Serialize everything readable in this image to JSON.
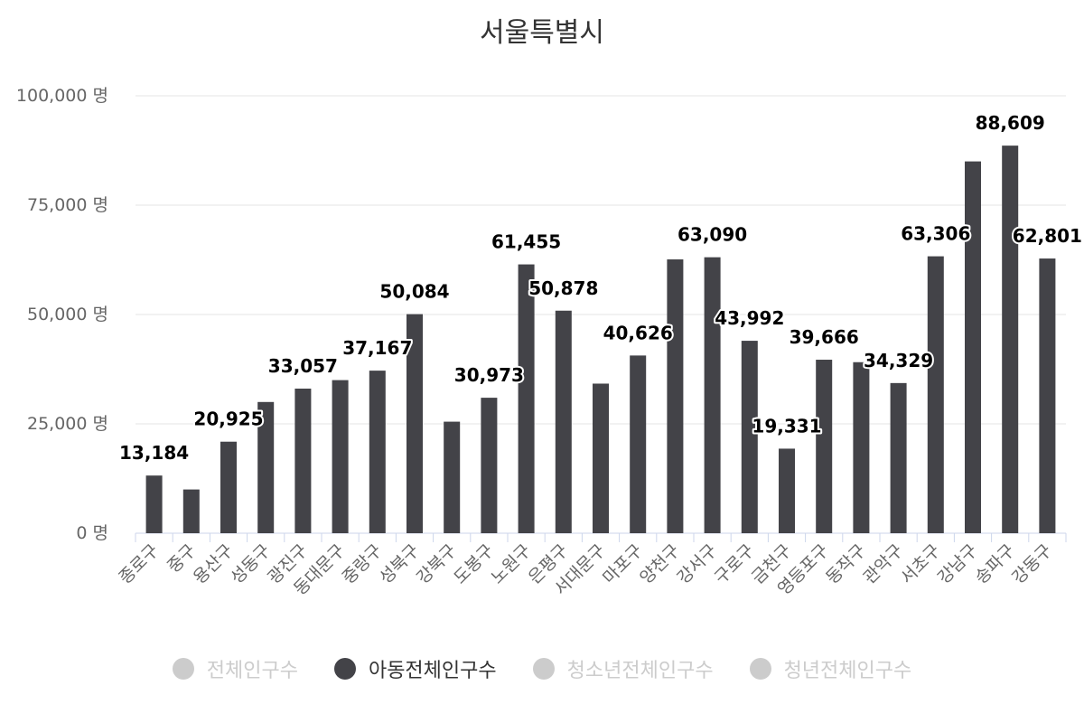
{
  "chart_data": {
    "type": "bar",
    "title": "서울특별시",
    "unit": "명",
    "ylim": [
      0,
      100000
    ],
    "yticks": [
      0,
      25000,
      50000,
      75000,
      100000
    ],
    "ytick_labels": [
      "0 명",
      "25,000 명",
      "50,000 명",
      "75,000 명",
      "100,000 명"
    ],
    "categories": [
      "종로구",
      "중구",
      "용산구",
      "성동구",
      "광진구",
      "동대문구",
      "중랑구",
      "성북구",
      "강북구",
      "도봉구",
      "노원구",
      "은평구",
      "서대문구",
      "마포구",
      "양천구",
      "강서구",
      "구로구",
      "금천구",
      "영등포구",
      "동작구",
      "관악구",
      "서초구",
      "강남구",
      "송파구",
      "강동구"
    ],
    "series": [
      {
        "name": "아동전체인구수",
        "color": "#434348",
        "values": [
          13184,
          10000,
          20925,
          30000,
          33057,
          35000,
          37167,
          50084,
          25500,
          30973,
          61455,
          50878,
          34200,
          40626,
          62600,
          63090,
          43992,
          19331,
          39666,
          39100,
          34329,
          63306,
          85000,
          88609,
          62801
        ]
      }
    ],
    "data_labels": [
      {
        "category": "종로구",
        "text": "13,184"
      },
      {
        "category": "용산구",
        "text": "20,925"
      },
      {
        "category": "광진구",
        "text": "33,057"
      },
      {
        "category": "중랑구",
        "text": "37,167"
      },
      {
        "category": "성북구",
        "text": "50,084"
      },
      {
        "category": "도봉구",
        "text": "30,973"
      },
      {
        "category": "노원구",
        "text": "61,455"
      },
      {
        "category": "은평구",
        "text": "50,878"
      },
      {
        "category": "마포구",
        "text": "40,626"
      },
      {
        "category": "강서구",
        "text": "63,090"
      },
      {
        "category": "구로구",
        "text": "43,992"
      },
      {
        "category": "금천구",
        "text": "19,331"
      },
      {
        "category": "영등포구",
        "text": "39,666"
      },
      {
        "category": "관악구",
        "text": "34,329"
      },
      {
        "category": "서초구",
        "text": "63,306"
      },
      {
        "category": "송파구",
        "text": "88,609"
      },
      {
        "category": "강동구",
        "text": "62,801"
      }
    ],
    "legend": [
      {
        "name": "전체인구수",
        "active": false,
        "color": "#cccccc"
      },
      {
        "name": "아동전체인구수",
        "active": true,
        "color": "#434348"
      },
      {
        "name": "청소년전체인구수",
        "active": false,
        "color": "#cccccc"
      },
      {
        "name": "청년전체인구수",
        "active": false,
        "color": "#cccccc"
      }
    ]
  }
}
